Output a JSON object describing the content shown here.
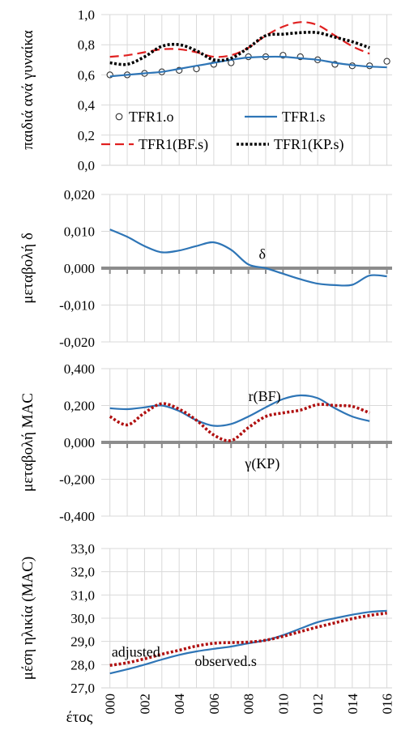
{
  "colors": {
    "blue": "#2e75b6",
    "red": "#e02020",
    "black": "#000000",
    "darkred": "#b01010",
    "grid": "#d9d9d9",
    "zero": "#8c8c8c"
  },
  "x_axis": {
    "label": "έτος",
    "tick_values": [
      2000,
      2002,
      2004,
      2006,
      2008,
      2010,
      2012,
      2014,
      2016
    ],
    "tick_labels": [
      "000",
      "002",
      "004",
      "006",
      "008",
      "010",
      "012",
      "014",
      "016"
    ]
  },
  "chart_data": [
    {
      "type": "line",
      "ylabel": "παιδιά ανά γυναίκα",
      "ylim": [
        0.0,
        1.0
      ],
      "yticks": [
        0.0,
        0.2,
        0.4,
        0.6,
        0.8,
        1.0
      ],
      "ytick_labels": [
        "0,0",
        "0,2",
        "0,4",
        "0,6",
        "0,8",
        "1,0"
      ],
      "legend": [
        {
          "name": "TFR1.o",
          "style": "marker"
        },
        {
          "name": "TFR1.s",
          "style": "solid"
        },
        {
          "name": "TFR1(BF.s)",
          "style": "dashed"
        },
        {
          "name": "TFR1(KP.s)",
          "style": "dotted"
        }
      ],
      "series": [
        {
          "name": "TFR1.o",
          "style": "marker",
          "x": [
            2000,
            2001,
            2002,
            2003,
            2004,
            2005,
            2006,
            2007,
            2008,
            2009,
            2010,
            2011,
            2012,
            2013,
            2014,
            2015,
            2016
          ],
          "y": [
            0.6,
            0.6,
            0.61,
            0.62,
            0.63,
            0.64,
            0.67,
            0.68,
            0.72,
            0.72,
            0.73,
            0.72,
            0.7,
            0.67,
            0.66,
            0.66,
            0.69
          ]
        },
        {
          "name": "TFR1.s",
          "style": "solid",
          "x": [
            2000,
            2001,
            2002,
            2003,
            2004,
            2005,
            2006,
            2007,
            2008,
            2009,
            2010,
            2011,
            2012,
            2013,
            2014,
            2015,
            2016
          ],
          "y": [
            0.59,
            0.6,
            0.61,
            0.62,
            0.64,
            0.66,
            0.68,
            0.7,
            0.715,
            0.72,
            0.72,
            0.71,
            0.7,
            0.68,
            0.665,
            0.655,
            0.65
          ]
        },
        {
          "name": "TFR1(BF.s)",
          "style": "dashed",
          "x": [
            2000,
            2001,
            2002,
            2003,
            2004,
            2005,
            2006,
            2007,
            2008,
            2009,
            2010,
            2011,
            2012,
            2013,
            2014,
            2015
          ],
          "y": [
            0.72,
            0.73,
            0.75,
            0.77,
            0.77,
            0.75,
            0.72,
            0.73,
            0.78,
            0.86,
            0.92,
            0.95,
            0.93,
            0.86,
            0.79,
            0.74
          ]
        },
        {
          "name": "TFR1(KP.s)",
          "style": "dotted",
          "x": [
            2000,
            2001,
            2002,
            2003,
            2004,
            2005,
            2006,
            2007,
            2008,
            2009,
            2010,
            2011,
            2012,
            2013,
            2014,
            2015
          ],
          "y": [
            0.68,
            0.67,
            0.72,
            0.79,
            0.8,
            0.76,
            0.7,
            0.71,
            0.78,
            0.86,
            0.87,
            0.88,
            0.88,
            0.85,
            0.82,
            0.78
          ]
        }
      ]
    },
    {
      "type": "line",
      "ylabel": "μεταβολή δ",
      "ylim": [
        -0.02,
        0.02
      ],
      "yticks": [
        -0.02,
        -0.01,
        0.0,
        0.01,
        0.02
      ],
      "ytick_labels": [
        "-0,020",
        "-0,010",
        "0,000",
        "0,010",
        "0,020"
      ],
      "annotations": [
        {
          "text": "δ",
          "x": 2008.6,
          "y": 0.0025
        }
      ],
      "series": [
        {
          "name": "δ",
          "style": "solid",
          "x": [
            2000,
            2001,
            2002,
            2003,
            2004,
            2005,
            2006,
            2007,
            2008,
            2009,
            2010,
            2011,
            2012,
            2013,
            2014,
            2015,
            2016
          ],
          "y": [
            0.0105,
            0.0085,
            0.006,
            0.0043,
            0.0048,
            0.006,
            0.007,
            0.005,
            0.001,
            0.0,
            -0.0015,
            -0.003,
            -0.0042,
            -0.0046,
            -0.0045,
            -0.002,
            -0.0022
          ]
        }
      ]
    },
    {
      "type": "line",
      "ylabel": "μεταβολή MAC",
      "ylim": [
        -0.4,
        0.4
      ],
      "yticks": [
        -0.4,
        -0.2,
        0.0,
        0.2,
        0.4
      ],
      "ytick_labels": [
        "-0,400",
        "-0,200",
        "0,000",
        "0,200",
        "0,400"
      ],
      "annotations": [
        {
          "text": "r(BF)",
          "x": 2008.0,
          "y": 0.225
        },
        {
          "text": "γ(KP)",
          "x": 2007.8,
          "y": -0.14
        }
      ],
      "series": [
        {
          "name": "r(BF)",
          "style": "solid",
          "x": [
            2000,
            2001,
            2002,
            2003,
            2004,
            2005,
            2006,
            2007,
            2008,
            2009,
            2010,
            2011,
            2012,
            2013,
            2014,
            2015
          ],
          "y": [
            0.185,
            0.18,
            0.19,
            0.2,
            0.17,
            0.12,
            0.09,
            0.1,
            0.14,
            0.19,
            0.235,
            0.255,
            0.24,
            0.185,
            0.14,
            0.115
          ]
        },
        {
          "name": "γ(KP)",
          "style": "dotted",
          "x": [
            2000,
            2001,
            2002,
            2003,
            2004,
            2005,
            2006,
            2007,
            2008,
            2009,
            2010,
            2011,
            2012,
            2013,
            2014,
            2015
          ],
          "y": [
            0.14,
            0.095,
            0.16,
            0.21,
            0.18,
            0.12,
            0.04,
            0.01,
            0.08,
            0.14,
            0.16,
            0.175,
            0.205,
            0.2,
            0.195,
            0.16
          ]
        }
      ]
    },
    {
      "type": "line",
      "ylabel": "μέση ηλικία (MAC)",
      "ylim": [
        27.0,
        33.0
      ],
      "yticks": [
        27.0,
        28.0,
        29.0,
        30.0,
        31.0,
        32.0,
        33.0
      ],
      "ytick_labels": [
        "27,0",
        "28,0",
        "29,0",
        "30,0",
        "31,0",
        "32,0",
        "33,0"
      ],
      "annotations": [
        {
          "text": "adjusted",
          "x": 2000.1,
          "y": 28.35
        },
        {
          "text": "observed.s",
          "x": 2004.9,
          "y": 27.95
        }
      ],
      "series": [
        {
          "name": "observed.s",
          "style": "solid",
          "x": [
            2000,
            2001,
            2002,
            2003,
            2004,
            2005,
            2006,
            2007,
            2008,
            2009,
            2010,
            2011,
            2012,
            2013,
            2014,
            2015,
            2016
          ],
          "y": [
            27.62,
            27.8,
            28.0,
            28.22,
            28.42,
            28.57,
            28.68,
            28.78,
            28.92,
            29.05,
            29.27,
            29.55,
            29.83,
            30.0,
            30.15,
            30.27,
            30.32
          ]
        },
        {
          "name": "adjusted",
          "style": "dotted",
          "x": [
            2000,
            2001,
            2002,
            2003,
            2004,
            2005,
            2006,
            2007,
            2008,
            2009,
            2010,
            2011,
            2012,
            2013,
            2014,
            2015,
            2016
          ],
          "y": [
            27.97,
            28.08,
            28.25,
            28.45,
            28.62,
            28.8,
            28.92,
            28.95,
            28.97,
            29.05,
            29.22,
            29.42,
            29.62,
            29.8,
            29.98,
            30.12,
            30.22
          ]
        }
      ]
    }
  ]
}
